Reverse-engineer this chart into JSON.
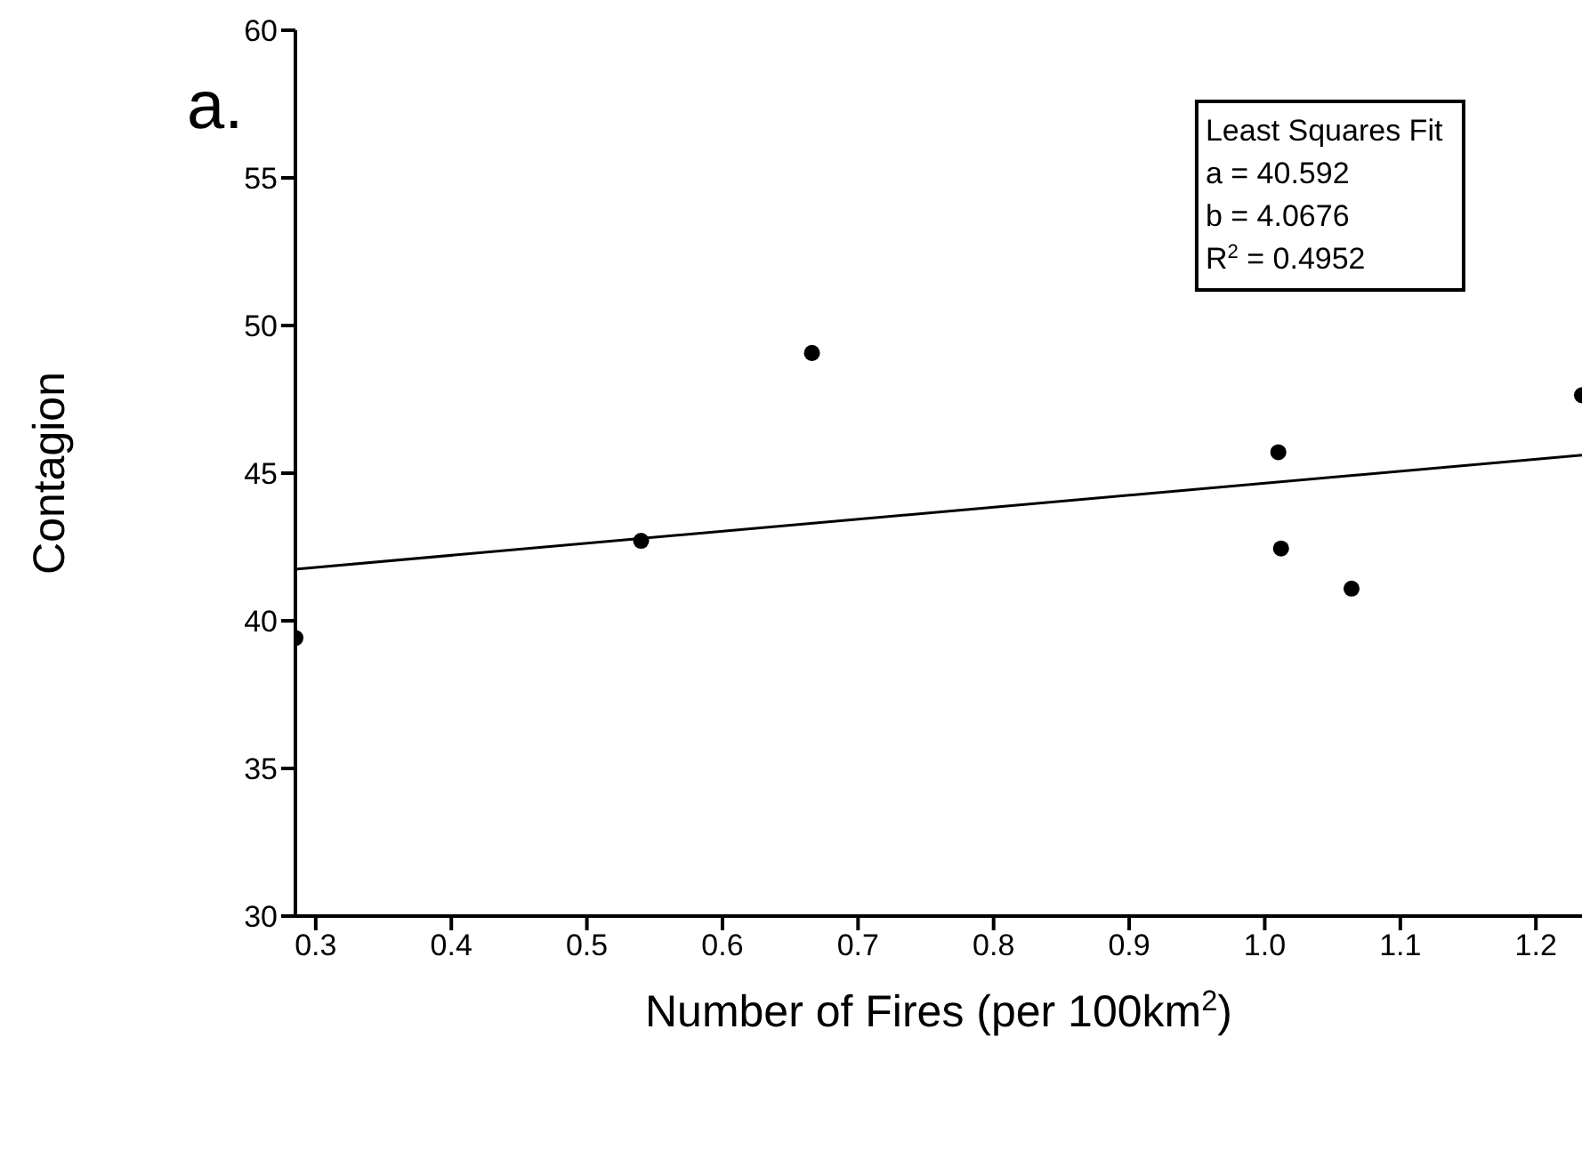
{
  "chart_data": {
    "type": "scatter",
    "xlabel": "Number of Fires (per 100km$^{2}$)",
    "ylabel": "Contagion",
    "annotations": [
      "a.",
      "Least Squares Fit",
      "a = 40.592",
      "b = 4.0676",
      "R$^{2}$ = 0.4952"
    ],
    "xlim": [
      0.285,
      1.234
    ],
    "xticks": [
      0.3,
      0.4,
      0.5,
      0.6,
      0.7,
      0.8,
      0.9,
      {
        "value": 1,
        "label": "1.0"
      },
      1.1,
      1.2
    ],
    "ylim": [
      30,
      60
    ],
    "yticks": [
      30,
      35,
      40,
      45,
      50,
      55,
      60
    ],
    "marker": "circle",
    "series": [
      {
        "color": "#000000",
        "x": [
          0.285,
          0.54,
          0.666,
          1.01,
          1.012,
          1.064,
          1.234
        ],
        "values": [
          39.42,
          42.71,
          49.07,
          45.71,
          42.45,
          41.09,
          47.64
        ]
      },
      {
        "type": "line",
        "color": "#000000",
        "marker": "none",
        "x": [
          0.285,
          1.234
        ],
        "values": [
          41.75,
          45.61
        ]
      }
    ]
  }
}
